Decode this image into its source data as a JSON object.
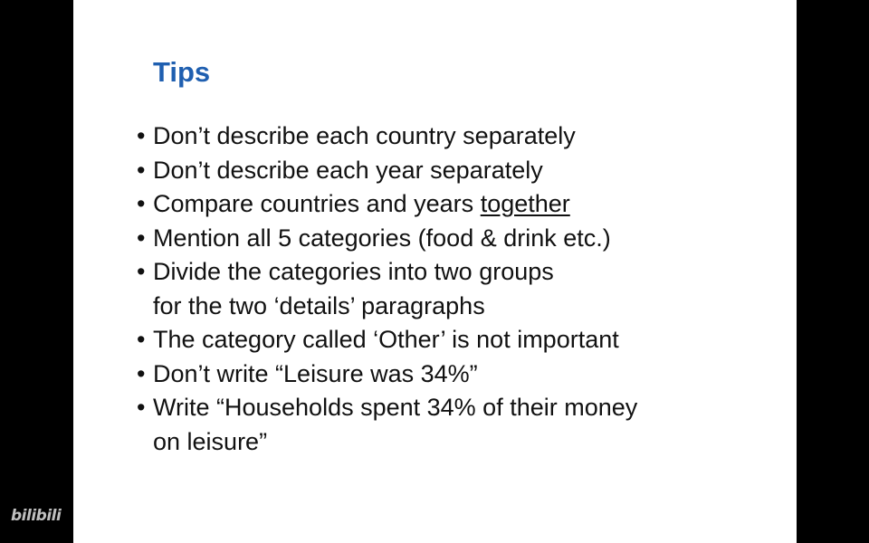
{
  "slide": {
    "title": "Tips",
    "title_color": "#1f5fb0",
    "bullet_glyph": "•",
    "tips": [
      {
        "lines": [
          "Don’t describe each country separately"
        ]
      },
      {
        "lines": [
          "Don’t describe each year separately"
        ]
      },
      {
        "text_before": "Compare countries and years ",
        "underlined": "together"
      },
      {
        "lines": [
          "Mention all 5 categories (food & drink etc.)"
        ]
      },
      {
        "lines": [
          "Divide the categories into two groups",
          "for the two ‘details’ paragraphs"
        ]
      },
      {
        "lines": [
          "The category called ‘Other’ is not important"
        ]
      },
      {
        "lines": [
          "Don’t write “Leisure was 34%”"
        ]
      },
      {
        "lines": [
          "Write “Households spent 34% of their money",
          "on leisure”"
        ]
      }
    ]
  },
  "watermark": {
    "text": "bilibili"
  }
}
